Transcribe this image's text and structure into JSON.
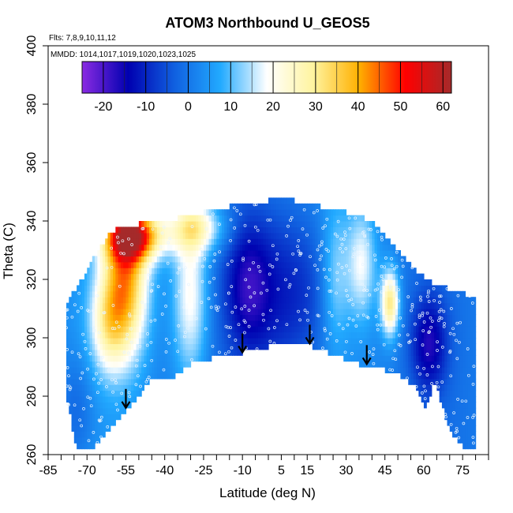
{
  "chart_data": {
    "type": "heatmap",
    "title": "ATOM3 Northbound U_GEOS5",
    "notes": [
      "Flts: 7,8,9,10,11,12",
      "MMDD: 1014,1017,1019,1020,1023,1025"
    ],
    "xlabel": "Latitude (deg N)",
    "ylabel": "Theta (C)",
    "xlim": [
      -85,
      85
    ],
    "ylim": [
      260,
      400
    ],
    "x_ticks": [
      -85,
      -70,
      -55,
      -40,
      -25,
      -10,
      5,
      15,
      30,
      45,
      60,
      75
    ],
    "x_minor_ticks": [
      -80,
      -75,
      -65,
      -60,
      -50,
      -45,
      -35,
      -30,
      -20,
      -15,
      -5,
      0,
      10,
      20,
      25,
      35,
      40,
      50,
      55,
      65,
      70,
      80,
      85
    ],
    "y_ticks": [
      260,
      280,
      300,
      320,
      340,
      360,
      380,
      400
    ],
    "colorbar": {
      "min": -25,
      "max": 62,
      "ticks": [
        -20,
        -10,
        0,
        10,
        20,
        30,
        40,
        50,
        60
      ],
      "colors": [
        "#8a2be2",
        "#0000b0",
        "#1060e0",
        "#22aaff",
        "#ffffff",
        "#fff4a0",
        "#ffb000",
        "#ff0000",
        "#a52a2a"
      ]
    },
    "grid": false,
    "legend": "colorbar top",
    "arrows": [
      {
        "lat": -55,
        "theta": 276
      },
      {
        "lat": -10,
        "theta": 295
      },
      {
        "lat": 16,
        "theta": 298
      },
      {
        "lat": 38,
        "theta": 291
      }
    ],
    "envelope": {
      "top": [
        [
          -78,
          312
        ],
        [
          -72,
          320
        ],
        [
          -67,
          328
        ],
        [
          -62,
          335
        ],
        [
          -58,
          338
        ],
        [
          -50,
          339
        ],
        [
          -40,
          340
        ],
        [
          -30,
          342
        ],
        [
          -15,
          345
        ],
        [
          0,
          347
        ],
        [
          10,
          347
        ],
        [
          20,
          345
        ],
        [
          30,
          343
        ],
        [
          40,
          340
        ],
        [
          50,
          330
        ],
        [
          58,
          322
        ],
        [
          65,
          318
        ],
        [
          72,
          316
        ],
        [
          80,
          314
        ]
      ],
      "bottom": [
        [
          -78,
          280
        ],
        [
          -74,
          262
        ],
        [
          -68,
          262
        ],
        [
          -55,
          275
        ],
        [
          -44,
          287
        ],
        [
          -38,
          286
        ],
        [
          -28,
          292
        ],
        [
          -10,
          295
        ],
        [
          10,
          299
        ],
        [
          20,
          296
        ],
        [
          35,
          291
        ],
        [
          50,
          288
        ],
        [
          58,
          282
        ],
        [
          61,
          276
        ],
        [
          64,
          286
        ],
        [
          70,
          268
        ],
        [
          76,
          262
        ],
        [
          80,
          262
        ]
      ]
    },
    "field": [
      {
        "lat": -55,
        "theta": 320,
        "value": 38,
        "sx": 6,
        "sy": 18
      },
      {
        "lat": -52,
        "theta": 335,
        "value": 45,
        "sx": 8,
        "sy": 6
      },
      {
        "lat": -62,
        "theta": 305,
        "value": 20,
        "sx": 5,
        "sy": 12
      },
      {
        "lat": -30,
        "theta": 315,
        "value": 22,
        "sx": 5,
        "sy": 22
      },
      {
        "lat": -28,
        "theta": 338,
        "value": 24,
        "sx": 8,
        "sy": 6
      },
      {
        "lat": 8,
        "theta": 315,
        "value": -12,
        "sx": 14,
        "sy": 22
      },
      {
        "lat": -8,
        "theta": 318,
        "value": -10,
        "sx": 6,
        "sy": 16
      },
      {
        "lat": 26,
        "theta": 320,
        "value": 14,
        "sx": 4,
        "sy": 18
      },
      {
        "lat": 36,
        "theta": 325,
        "value": 18,
        "sx": 4,
        "sy": 14
      },
      {
        "lat": 47,
        "theta": 312,
        "value": 32,
        "sx": 2.5,
        "sy": 8
      },
      {
        "lat": 62,
        "theta": 298,
        "value": -14,
        "sx": 5,
        "sy": 12
      },
      {
        "lat": -74,
        "theta": 275,
        "value": -4,
        "sx": 5,
        "sy": 14
      }
    ]
  }
}
